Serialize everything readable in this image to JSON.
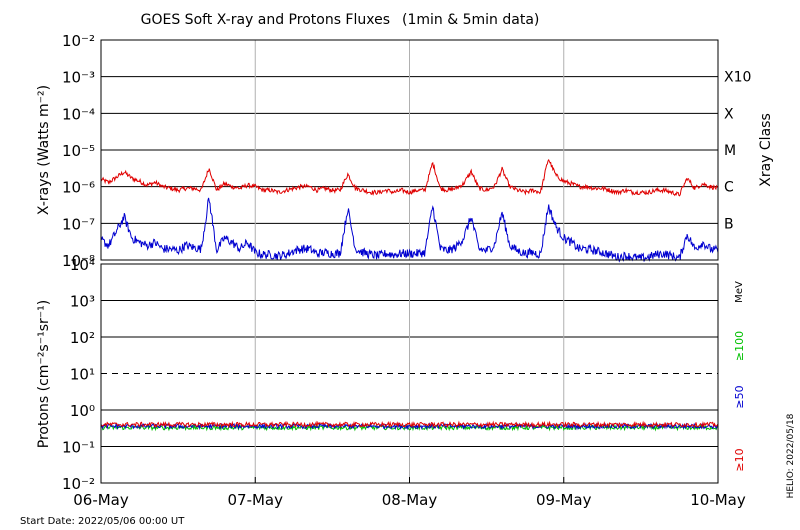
{
  "chart_data": [
    {
      "type": "line",
      "title": "GOES Soft X-ray and Protons Fluxes",
      "subtitle": "(1min & 5min data)",
      "ylabel": "X-rays (Watts m⁻²)",
      "yscale": "log",
      "ylim": [
        1e-08,
        0.01
      ],
      "yticks": [
        "10⁻²",
        "10⁻³",
        "10⁻⁴",
        "10⁻⁵",
        "10⁻⁶",
        "10⁻⁷",
        "10⁻⁸"
      ],
      "right_axis_label": "Xray Class",
      "classes": [
        "X10",
        "X",
        "M",
        "C",
        "B"
      ],
      "x_ticks": [
        "06-May",
        "07-May",
        "08-May",
        "09-May",
        "10-May"
      ],
      "grid": true,
      "series": [
        {
          "color": "#e00000",
          "x": [
            0.0,
            0.05,
            0.1,
            0.15,
            0.2,
            0.25,
            0.3,
            0.35,
            0.4,
            0.45,
            0.5,
            0.55,
            0.6,
            0.65,
            0.7,
            0.75,
            0.8,
            0.85,
            0.9,
            0.95,
            1.0,
            1.05,
            1.1,
            1.15,
            1.2,
            1.25,
            1.3,
            1.35,
            1.4,
            1.45,
            1.5,
            1.55,
            1.6,
            1.65,
            1.7,
            1.75,
            1.8,
            1.85,
            1.9,
            1.95,
            2.0,
            2.05,
            2.1,
            2.15,
            2.2,
            2.25,
            2.3,
            2.35,
            2.4,
            2.45,
            2.5,
            2.55,
            2.6,
            2.65,
            2.7,
            2.75,
            2.8,
            2.85,
            2.9,
            2.95,
            3.0,
            3.05,
            3.1,
            3.15,
            3.2,
            3.25,
            3.3,
            3.35,
            3.4,
            3.45,
            3.5,
            3.55,
            3.6,
            3.65,
            3.7,
            3.75,
            3.8,
            3.85,
            3.9,
            3.95,
            4.0
          ],
          "values": [
            1.6e-06,
            1.3e-06,
            1.8e-06,
            2.5e-06,
            1.7e-06,
            1.4e-06,
            1.1e-06,
            1.3e-06,
            1e-06,
            9e-07,
            8e-07,
            9e-07,
            9e-07,
            8e-07,
            3.2e-06,
            8e-07,
            1.2e-06,
            1e-06,
            9e-07,
            1.1e-06,
            1e-06,
            8e-07,
            8e-07,
            7e-07,
            8e-07,
            9e-07,
            1e-06,
            1e-06,
            8e-07,
            9e-07,
            8e-07,
            8e-07,
            2.2e-06,
            9e-07,
            8e-07,
            7e-07,
            7e-07,
            8e-07,
            7e-07,
            8e-07,
            7e-07,
            8e-07,
            8e-07,
            4.5e-06,
            9e-07,
            8e-07,
            9e-07,
            1.2e-06,
            2.6e-06,
            9e-07,
            8e-07,
            1e-06,
            3e-06,
            1e-06,
            8e-07,
            7e-07,
            8e-07,
            7e-07,
            5.8e-06,
            2e-06,
            1.4e-06,
            1.2e-06,
            1e-06,
            1e-06,
            9e-07,
            9e-07,
            8e-07,
            7e-07,
            8e-07,
            7e-07,
            7e-07,
            7e-07,
            8e-07,
            8e-07,
            7e-07,
            6e-07,
            1.7e-06,
            9e-07,
            1.2e-06,
            1e-06,
            9e-07
          ]
        },
        {
          "color": "#0000d0",
          "x": [
            0.0,
            0.05,
            0.1,
            0.15,
            0.2,
            0.25,
            0.3,
            0.35,
            0.4,
            0.45,
            0.5,
            0.55,
            0.6,
            0.65,
            0.7,
            0.75,
            0.8,
            0.85,
            0.9,
            0.95,
            1.0,
            1.05,
            1.1,
            1.15,
            1.2,
            1.25,
            1.3,
            1.35,
            1.4,
            1.45,
            1.5,
            1.55,
            1.6,
            1.65,
            1.7,
            1.75,
            1.8,
            1.85,
            1.9,
            1.95,
            2.0,
            2.05,
            2.1,
            2.15,
            2.2,
            2.25,
            2.3,
            2.35,
            2.4,
            2.45,
            2.5,
            2.55,
            2.6,
            2.65,
            2.7,
            2.75,
            2.8,
            2.85,
            2.9,
            2.95,
            3.0,
            3.05,
            3.1,
            3.15,
            3.2,
            3.25,
            3.3,
            3.35,
            3.4,
            3.45,
            3.5,
            3.55,
            3.6,
            3.65,
            3.7,
            3.75,
            3.8,
            3.85,
            3.9,
            3.95,
            4.0
          ],
          "values": [
            3.5e-08,
            2.5e-08,
            6e-08,
            1.5e-07,
            4e-08,
            3e-08,
            2.5e-08,
            3e-08,
            2e-08,
            2e-08,
            1.8e-08,
            2.5e-08,
            2.2e-08,
            2e-08,
            5e-07,
            1.8e-08,
            4e-08,
            3e-08,
            2e-08,
            3e-08,
            1.6e-08,
            1.4e-08,
            1.4e-08,
            1.3e-08,
            1.4e-08,
            1.8e-08,
            2e-08,
            2e-08,
            1.5e-08,
            1.6e-08,
            1.5e-08,
            1.5e-08,
            2.5e-07,
            2e-08,
            1.6e-08,
            1.4e-08,
            1.3e-08,
            1.5e-08,
            1.4e-08,
            1.5e-08,
            1.5e-08,
            1.5e-08,
            1.6e-08,
            3e-07,
            2e-08,
            1.8e-08,
            2.2e-08,
            4e-08,
            1.5e-07,
            2e-08,
            1.8e-08,
            2.5e-08,
            2e-07,
            2.5e-08,
            1.8e-08,
            1.5e-08,
            1.6e-08,
            1.4e-08,
            3e-07,
            8e-08,
            4e-08,
            3e-08,
            2e-08,
            2e-08,
            1.8e-08,
            1.6e-08,
            1.4e-08,
            1.2e-08,
            1.3e-08,
            1.2e-08,
            1.1e-08,
            1.2e-08,
            1.4e-08,
            1.5e-08,
            1.3e-08,
            1.1e-08,
            5e-08,
            2e-08,
            3e-08,
            2e-08,
            1.8e-08
          ]
        }
      ]
    },
    {
      "type": "line",
      "ylabel": "Protons (cm⁻²s⁻¹sr⁻¹)",
      "yscale": "log",
      "ylim": [
        0.01,
        10000
      ],
      "yticks": [
        "10⁴",
        "10³",
        "10²",
        "10¹",
        "10⁰",
        "10⁻¹",
        "10⁻²"
      ],
      "unit_label": "MeV",
      "threshold": 10,
      "x_ticks": [
        "06-May",
        "07-May",
        "08-May",
        "09-May",
        "10-May"
      ],
      "series": [
        {
          "name": "≥10",
          "color": "#e00000",
          "level": 0.4
        },
        {
          "name": "≥50",
          "color": "#0000d0",
          "level": 0.36
        },
        {
          "name": "≥100",
          "color": "#00c000",
          "level": 0.33
        }
      ]
    }
  ],
  "footer": {
    "start_date": "Start Date: 2022/05/06 00:00 UT",
    "helio": "HELIO: 2022/05/18"
  }
}
